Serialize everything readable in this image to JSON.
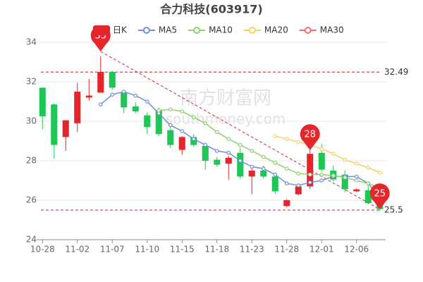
{
  "chart_data": {
    "type": "candlestick",
    "title": "合力科技(603917)",
    "watermark": [
      "南方财富网",
      "southmoney.com"
    ],
    "categories": [
      "10-28",
      null,
      null,
      "11-02",
      null,
      null,
      "11-07",
      null,
      null,
      "11-10",
      null,
      null,
      "11-15",
      null,
      null,
      "11-18",
      null,
      null,
      "11-23",
      null,
      null,
      "11-28",
      null,
      null,
      "12-01",
      null,
      null,
      "12-06",
      null,
      null
    ],
    "candles": {
      "name": "日K",
      "up_color": "#e3262b",
      "down_color": "#1ec755",
      "open": [
        31.7,
        30.85,
        29.2,
        29.9,
        31.2,
        31.45,
        32.5,
        31.45,
        30.75,
        30.3,
        30.55,
        29.55,
        28.55,
        29.2,
        28.75,
        28.05,
        27.85,
        28.4,
        27.2,
        27.5,
        27.2,
        25.7,
        26.3,
        26.7,
        28.4,
        27.5,
        27.3,
        26.45,
        26.5,
        25.8
      ],
      "close": [
        30.25,
        28.8,
        30.05,
        31.5,
        31.3,
        32.5,
        31.7,
        30.7,
        30.5,
        29.7,
        29.35,
        28.8,
        29.2,
        28.8,
        28.0,
        27.8,
        28.15,
        27.2,
        27.5,
        27.2,
        26.45,
        26.0,
        26.7,
        28.35,
        27.55,
        27.05,
        26.55,
        26.55,
        25.85,
        25.55
      ],
      "high": [
        31.7,
        30.9,
        30.05,
        31.95,
        32.15,
        33.3,
        32.55,
        31.6,
        30.95,
        30.45,
        30.7,
        29.9,
        29.25,
        29.35,
        28.9,
        28.2,
        28.25,
        28.65,
        27.65,
        27.75,
        27.4,
        26.05,
        26.85,
        28.7,
        28.85,
        27.75,
        27.5,
        26.6,
        26.85,
        25.95
      ],
      "low": [
        29.6,
        28.1,
        28.5,
        29.45,
        31.05,
        31.45,
        31.6,
        30.4,
        30.4,
        29.35,
        29.25,
        28.65,
        28.3,
        28.7,
        27.55,
        27.7,
        27.05,
        27.1,
        26.3,
        27.1,
        26.3,
        25.65,
        26.25,
        26.55,
        27.45,
        26.95,
        26.4,
        26.4,
        25.8,
        25.45
      ]
    },
    "series": [
      {
        "name": "MA5",
        "color": "#6e8fd6",
        "values": [
          null,
          null,
          null,
          null,
          null,
          30.85,
          31.35,
          31.5,
          31.3,
          31.0,
          30.4,
          29.8,
          29.5,
          29.1,
          28.8,
          28.5,
          28.4,
          28.0,
          27.7,
          27.6,
          27.3,
          26.85,
          26.75,
          26.9,
          27.0,
          27.2,
          27.2,
          27.2,
          26.85,
          26.1
        ]
      },
      {
        "name": "MA10",
        "color": "#8fd16b",
        "values": [
          null,
          null,
          null,
          null,
          null,
          null,
          null,
          null,
          null,
          null,
          30.55,
          30.6,
          30.5,
          30.2,
          29.9,
          29.45,
          29.1,
          28.8,
          28.5,
          28.2,
          27.9,
          27.6,
          27.35,
          27.3,
          27.3,
          27.25,
          27.15,
          27.0,
          26.85,
          26.6
        ]
      },
      {
        "name": "MA20",
        "color": "#f5d063",
        "values": [
          null,
          null,
          null,
          null,
          null,
          null,
          null,
          null,
          null,
          null,
          null,
          null,
          null,
          null,
          null,
          null,
          null,
          null,
          null,
          null,
          29.25,
          29.1,
          28.95,
          28.8,
          28.6,
          28.35,
          28.05,
          27.85,
          27.65,
          27.4
        ]
      },
      {
        "name": "MA30",
        "color": "#ec6f6f",
        "values": [
          null,
          null,
          null,
          null,
          null,
          null,
          null,
          null,
          null,
          null,
          null,
          null,
          null,
          null,
          null,
          null,
          null,
          null,
          null,
          null,
          null,
          null,
          null,
          null,
          null,
          null,
          null,
          null,
          null,
          null
        ]
      }
    ],
    "ylim": [
      24,
      34
    ],
    "yticks": [
      24,
      26,
      28,
      30,
      32,
      34
    ],
    "grid": true,
    "reference_lines": [
      {
        "value": 32.49,
        "label": "32.49"
      },
      {
        "value": 25.5,
        "label": "25.5"
      }
    ],
    "annotations": [
      {
        "value": 33,
        "index": 5
      },
      {
        "value": 28,
        "index": 23
      },
      {
        "value": 25,
        "index": 29
      }
    ],
    "annotation_color": "#e5262b"
  }
}
